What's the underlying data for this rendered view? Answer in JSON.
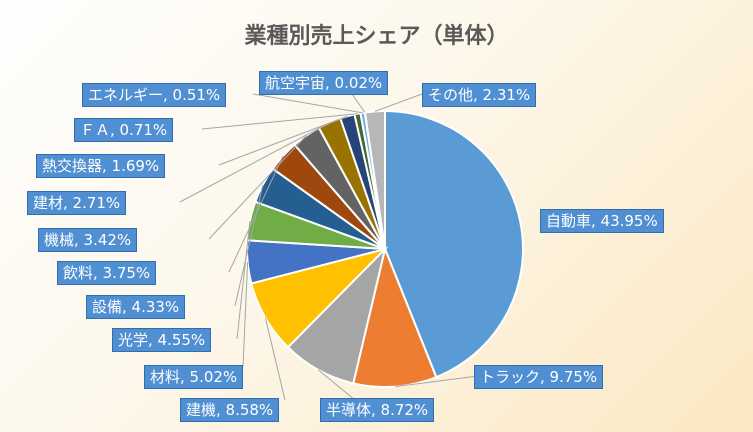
{
  "chart_data": {
    "type": "pie",
    "title": "業種別売上シェア（単体）",
    "start": "12 o'clock",
    "direction": "clockwise",
    "slices": [
      {
        "label": "自動車",
        "value": 43.95,
        "color": "#5b9bd5",
        "text": "自動車, 43.95%"
      },
      {
        "label": "トラック",
        "value": 9.75,
        "color": "#ed7d31",
        "text": "トラック, 9.75%"
      },
      {
        "label": "半導体",
        "value": 8.72,
        "color": "#a5a5a5",
        "text": "半導体, 8.72%"
      },
      {
        "label": "建機",
        "value": 8.58,
        "color": "#ffc000",
        "text": "建機, 8.58%"
      },
      {
        "label": "材料",
        "value": 5.02,
        "color": "#4472c4",
        "text": "材料, 5.02%"
      },
      {
        "label": "光学",
        "value": 4.55,
        "color": "#70ad47",
        "text": "光学, 4.55%"
      },
      {
        "label": "設備",
        "value": 4.33,
        "color": "#255e91",
        "text": "設備, 4.33%"
      },
      {
        "label": "飲料",
        "value": 3.75,
        "color": "#9e480e",
        "text": "飲料, 3.75%"
      },
      {
        "label": "機械",
        "value": 3.42,
        "color": "#636363",
        "text": "機械, 3.42%"
      },
      {
        "label": "建材",
        "value": 2.71,
        "color": "#997300",
        "text": "建材, 2.71%"
      },
      {
        "label": "熱交換器",
        "value": 1.69,
        "color": "#264478",
        "text": "熱交換器, 1.69%"
      },
      {
        "label": "ＦＡ",
        "value": 0.71,
        "color": "#43682b",
        "text": "ＦＡ, 0.71%"
      },
      {
        "label": "エネルギー",
        "value": 0.51,
        "color": "#7cafdd",
        "text": "エネルギー, 0.51%"
      },
      {
        "label": "航空宇宙",
        "value": 0.02,
        "color": "#f1975a",
        "text": "航空宇宙, 0.02%"
      },
      {
        "label": "その他",
        "value": 2.31,
        "color": "#b7b7b7",
        "text": "その他, 2.31%"
      }
    ]
  }
}
